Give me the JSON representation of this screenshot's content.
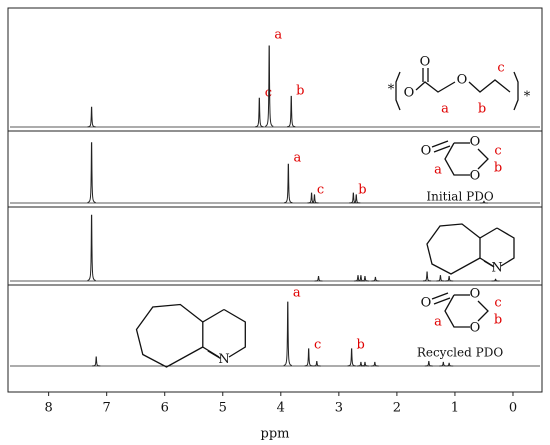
{
  "chart_data": {
    "type": "nmr",
    "x_label": "ppm",
    "xlim": [
      8.7,
      -0.5
    ],
    "xticks": [
      8,
      7,
      6,
      5,
      4,
      3,
      2,
      1,
      0
    ],
    "color": "#222222",
    "label_color": "#e00000",
    "series": [
      {
        "x": [
          7.26,
          4.37,
          4.2,
          3.82
        ],
        "values": [
          22,
          32,
          90,
          34
        ],
        "peak_labels": [
          null,
          "c",
          "a",
          "b"
        ],
        "structure_labels": [
          "*",
          "O",
          "O",
          "O",
          "a",
          "b",
          "c",
          "*"
        ]
      },
      {
        "x": [
          7.26,
          3.87,
          3.47,
          3.42,
          2.75,
          2.7,
          0.5
        ],
        "values": [
          67,
          43,
          11,
          9,
          11,
          9,
          2
        ],
        "peak_labels": [
          null,
          "a",
          "c",
          null,
          "b",
          null,
          null
        ],
        "structure_labels": [
          "O",
          "O",
          "O",
          "a",
          "b",
          "c"
        ],
        "caption": "Initial PDO"
      },
      {
        "x": [
          7.26,
          3.35,
          2.67,
          2.62,
          2.55,
          2.37,
          1.48,
          1.25,
          1.1,
          0.3
        ],
        "values": [
          73,
          5,
          6,
          6,
          5,
          4,
          10,
          6,
          5,
          2
        ],
        "peak_labels": [
          null,
          null,
          null,
          null,
          null,
          null,
          null,
          null,
          null,
          null
        ],
        "structure_labels": [
          "N"
        ]
      },
      {
        "x": [
          7.18,
          3.88,
          3.52,
          3.38,
          2.78,
          2.62,
          2.55,
          2.38,
          1.45,
          1.2,
          1.1
        ],
        "values": [
          10,
          71,
          19,
          5,
          19,
          4,
          4,
          4,
          5,
          4,
          3
        ],
        "peak_labels": [
          null,
          "a",
          "c",
          null,
          "b",
          null,
          null,
          null,
          null,
          null,
          null
        ],
        "structure_labels": [
          "N",
          "O",
          "O",
          "O",
          "a",
          "b",
          "c"
        ],
        "caption": "Recycled PDO"
      }
    ]
  }
}
